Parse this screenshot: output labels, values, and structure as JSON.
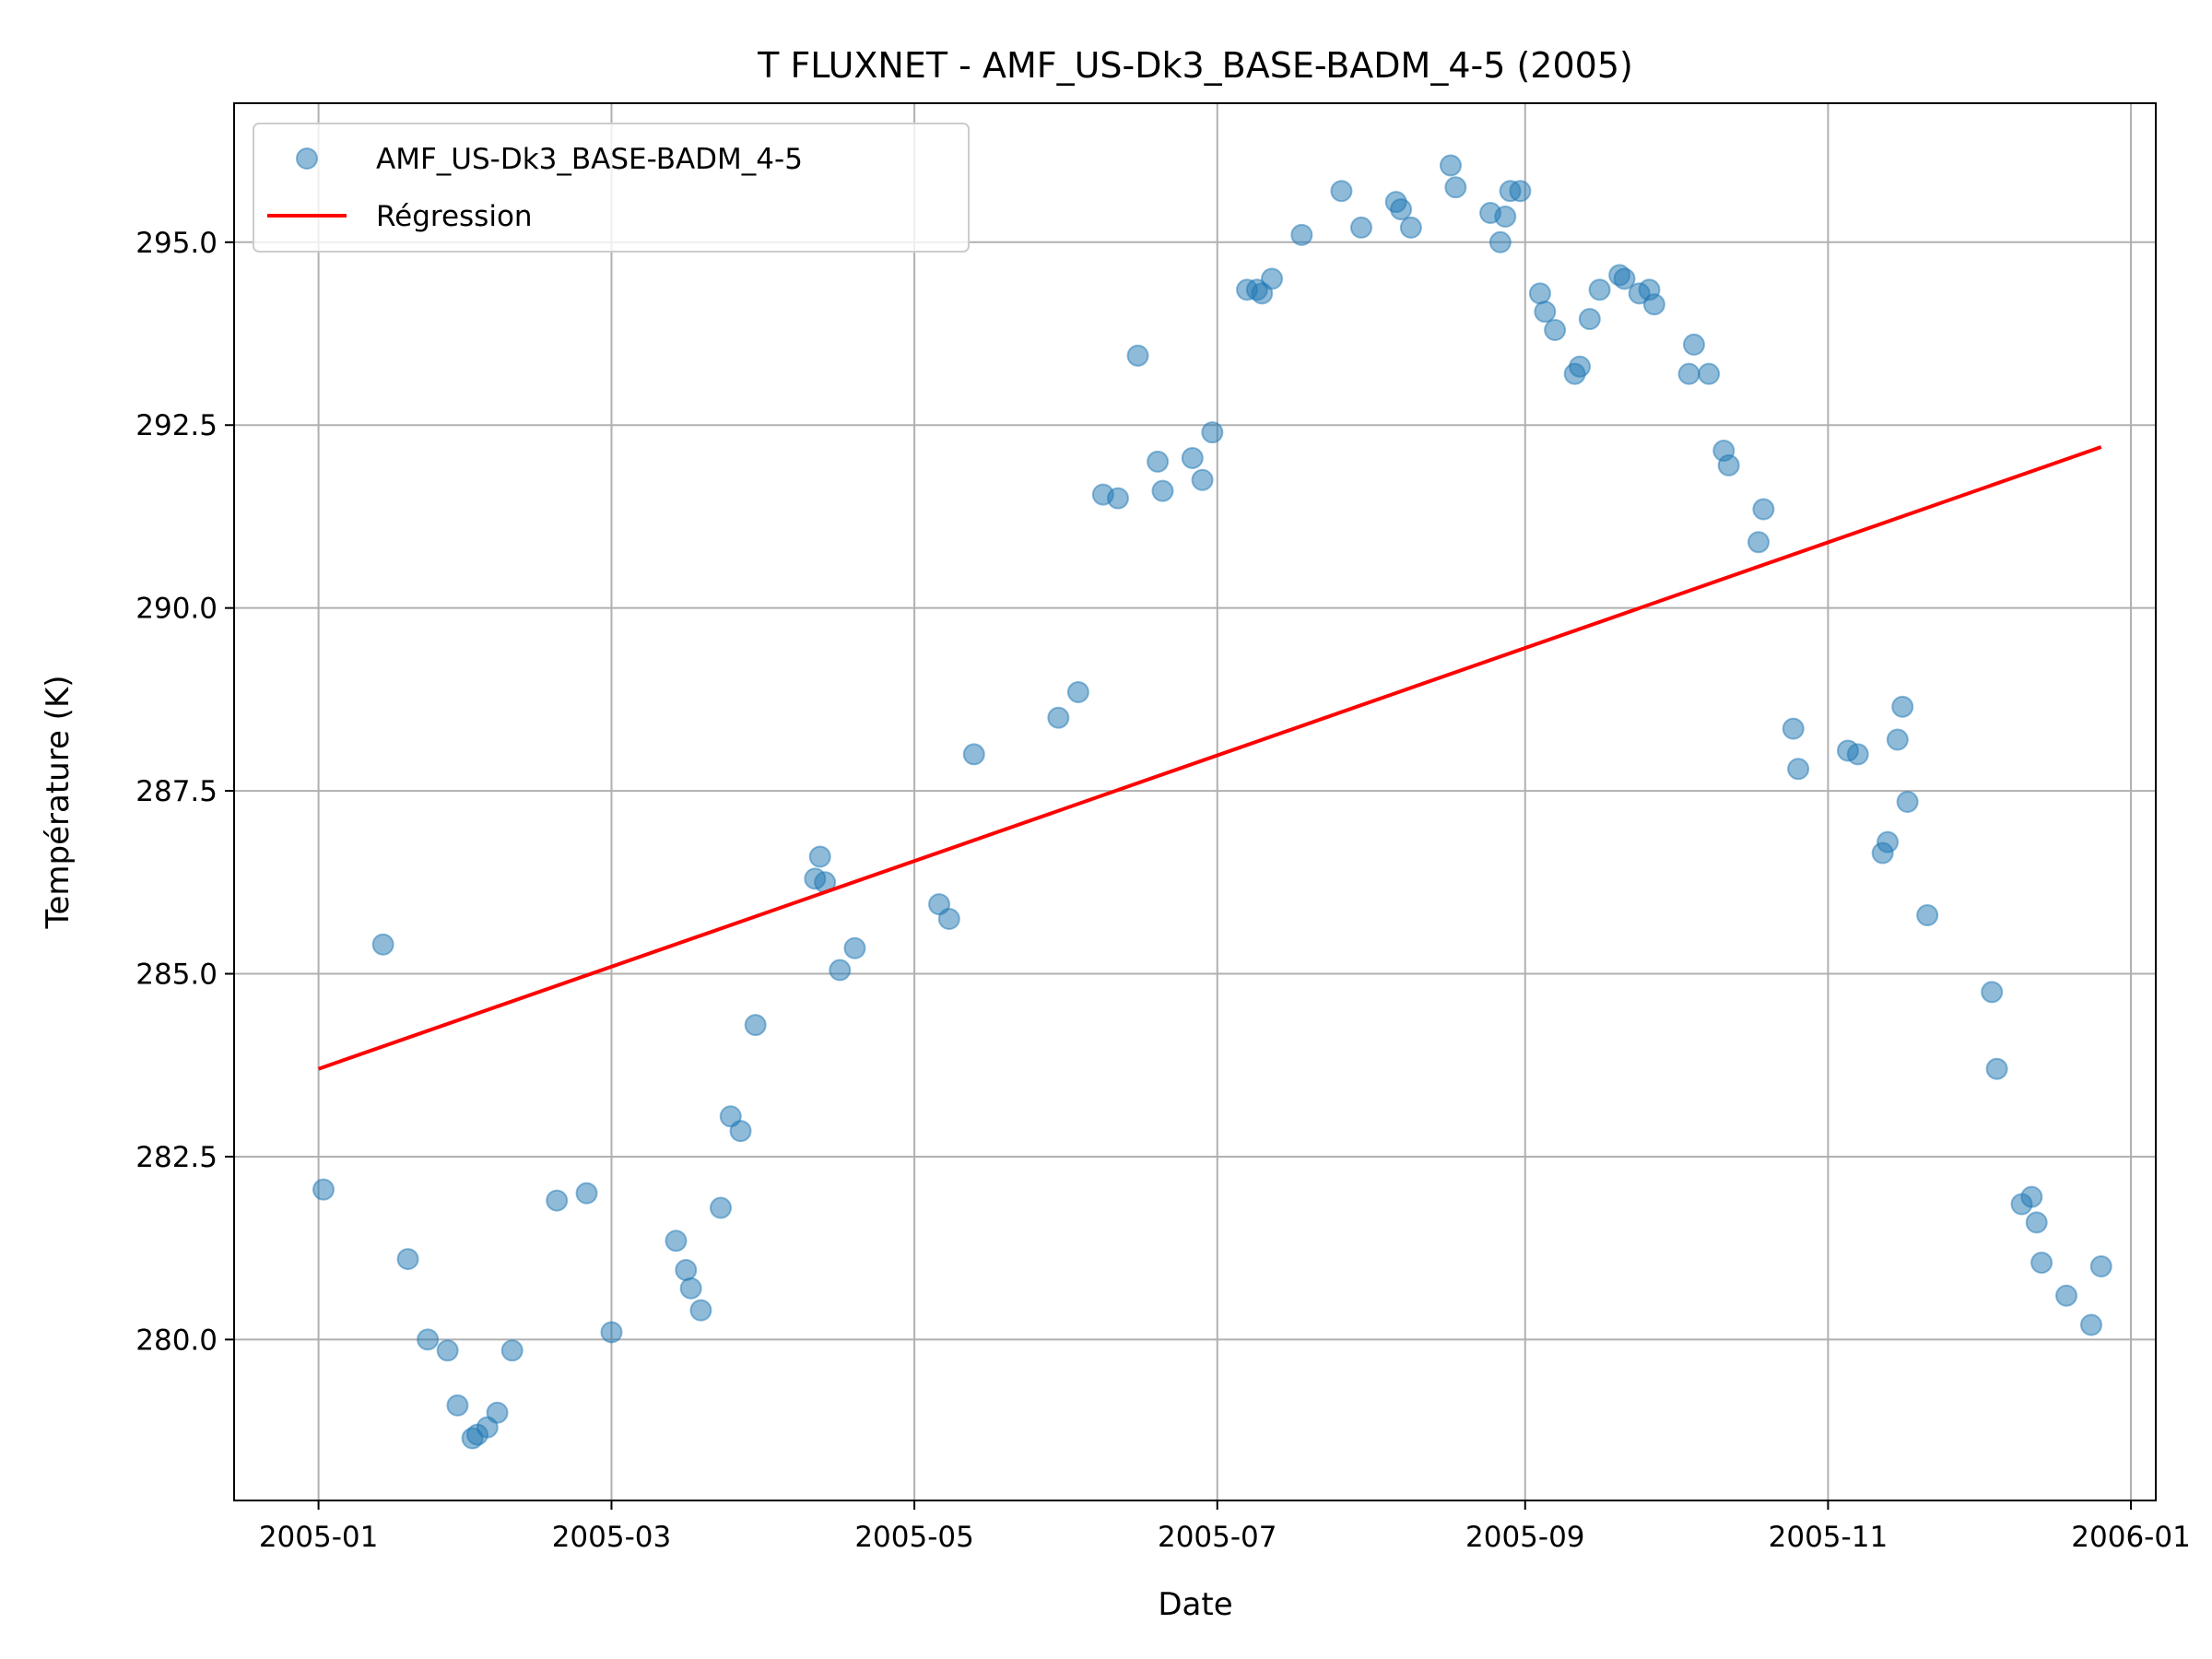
{
  "chart_data": {
    "type": "scatter",
    "title": "T FLUXNET - AMF_US-Dk3_BASE-BADM_4-5 (2005)",
    "xlabel": "Date",
    "ylabel": "Température (K)",
    "xlim": [
      "2004-12-15",
      "2006-01-06"
    ],
    "ylim": [
      277.8,
      296.9
    ],
    "grid": true,
    "legend_position": "top-left",
    "x_ticks": [
      "2005-01-01",
      "2005-03-01",
      "2005-05-01",
      "2005-07-01",
      "2005-09-01",
      "2005-11-01",
      "2006-01-01"
    ],
    "x_tick_labels": [
      "2005-01",
      "2005-03",
      "2005-05",
      "2005-07",
      "2005-09",
      "2005-11",
      "2006-01"
    ],
    "y_ticks": [
      280.0,
      282.5,
      285.0,
      287.5,
      290.0,
      292.5,
      295.0
    ],
    "y_tick_labels": [
      "280.0",
      "282.5",
      "285.0",
      "287.5",
      "290.0",
      "292.5",
      "295.0"
    ],
    "series": [
      {
        "name": "AMF_US-Dk3_BASE-BADM_4-5",
        "kind": "scatter",
        "color": "#1f77b4",
        "points": [
          [
            "2005-01-02",
            282.05
          ],
          [
            "2005-01-14",
            285.4
          ],
          [
            "2005-01-19",
            281.1
          ],
          [
            "2005-01-23",
            280.0
          ],
          [
            "2005-01-27",
            279.85
          ],
          [
            "2005-01-29",
            279.1
          ],
          [
            "2005-02-01",
            278.65
          ],
          [
            "2005-02-02",
            278.7
          ],
          [
            "2005-02-04",
            278.8
          ],
          [
            "2005-02-06",
            279.0
          ],
          [
            "2005-02-09",
            279.85
          ],
          [
            "2005-02-18",
            281.9
          ],
          [
            "2005-02-24",
            282.0
          ],
          [
            "2005-03-01",
            280.1
          ],
          [
            "2005-03-14",
            281.35
          ],
          [
            "2005-03-16",
            280.95
          ],
          [
            "2005-03-17",
            280.7
          ],
          [
            "2005-03-19",
            280.4
          ],
          [
            "2005-03-23",
            281.8
          ],
          [
            "2005-03-25",
            283.05
          ],
          [
            "2005-03-27",
            282.85
          ],
          [
            "2005-03-30",
            284.3
          ],
          [
            "2005-04-11",
            286.3
          ],
          [
            "2005-04-12",
            286.6
          ],
          [
            "2005-04-13",
            286.25
          ],
          [
            "2005-04-16",
            285.05
          ],
          [
            "2005-04-19",
            285.35
          ],
          [
            "2005-05-06",
            285.95
          ],
          [
            "2005-05-08",
            285.75
          ],
          [
            "2005-05-13",
            288.0
          ],
          [
            "2005-05-30",
            288.5
          ],
          [
            "2005-06-03",
            288.85
          ],
          [
            "2005-06-08",
            291.55
          ],
          [
            "2005-06-11",
            291.5
          ],
          [
            "2005-06-15",
            293.45
          ],
          [
            "2005-06-19",
            292.0
          ],
          [
            "2005-06-20",
            291.6
          ],
          [
            "2005-06-26",
            292.05
          ],
          [
            "2005-06-28",
            291.75
          ],
          [
            "2005-06-30",
            292.4
          ],
          [
            "2005-07-07",
            294.35
          ],
          [
            "2005-07-09",
            294.35
          ],
          [
            "2005-07-10",
            294.3
          ],
          [
            "2005-07-12",
            294.5
          ],
          [
            "2005-07-18",
            295.1
          ],
          [
            "2005-07-26",
            295.7
          ],
          [
            "2005-07-30",
            295.2
          ],
          [
            "2005-08-06",
            295.55
          ],
          [
            "2005-08-07",
            295.45
          ],
          [
            "2005-08-09",
            295.2
          ],
          [
            "2005-08-17",
            296.05
          ],
          [
            "2005-08-18",
            295.75
          ],
          [
            "2005-08-25",
            295.4
          ],
          [
            "2005-08-27",
            295.0
          ],
          [
            "2005-08-28",
            295.35
          ],
          [
            "2005-08-29",
            295.7
          ],
          [
            "2005-08-31",
            295.7
          ],
          [
            "2005-09-04",
            294.3
          ],
          [
            "2005-09-05",
            294.05
          ],
          [
            "2005-09-07",
            293.8
          ],
          [
            "2005-09-11",
            293.2
          ],
          [
            "2005-09-12",
            293.3
          ],
          [
            "2005-09-14",
            293.95
          ],
          [
            "2005-09-16",
            294.35
          ],
          [
            "2005-09-20",
            294.55
          ],
          [
            "2005-09-21",
            294.5
          ],
          [
            "2005-09-24",
            294.3
          ],
          [
            "2005-09-26",
            294.35
          ],
          [
            "2005-09-27",
            294.15
          ],
          [
            "2005-10-04",
            293.2
          ],
          [
            "2005-10-05",
            293.6
          ],
          [
            "2005-10-08",
            293.2
          ],
          [
            "2005-10-11",
            292.15
          ],
          [
            "2005-10-12",
            291.95
          ],
          [
            "2005-10-18",
            290.9
          ],
          [
            "2005-10-19",
            291.35
          ],
          [
            "2005-10-25",
            288.35
          ],
          [
            "2005-10-26",
            287.8
          ],
          [
            "2005-11-05",
            288.05
          ],
          [
            "2005-11-07",
            288.0
          ],
          [
            "2005-11-12",
            286.65
          ],
          [
            "2005-11-13",
            286.8
          ],
          [
            "2005-11-15",
            288.2
          ],
          [
            "2005-11-16",
            288.65
          ],
          [
            "2005-11-17",
            287.35
          ],
          [
            "2005-11-21",
            285.8
          ],
          [
            "2005-12-04",
            284.75
          ],
          [
            "2005-12-05",
            283.7
          ],
          [
            "2005-12-10",
            281.85
          ],
          [
            "2005-12-12",
            281.95
          ],
          [
            "2005-12-13",
            281.6
          ],
          [
            "2005-12-14",
            281.05
          ],
          [
            "2005-12-19",
            280.6
          ],
          [
            "2005-12-24",
            280.2
          ],
          [
            "2005-12-26",
            281.0
          ]
        ]
      },
      {
        "name": "Régression",
        "kind": "line",
        "color": "#ff0000",
        "points": [
          [
            "2005-01-01",
            283.7
          ],
          [
            "2005-12-26",
            292.2
          ]
        ]
      }
    ]
  }
}
